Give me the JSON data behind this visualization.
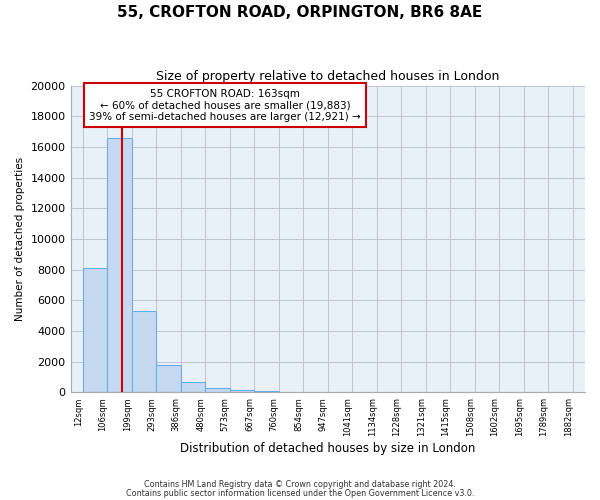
{
  "title": "55, CROFTON ROAD, ORPINGTON, BR6 8AE",
  "subtitle": "Size of property relative to detached houses in London",
  "xlabel": "Distribution of detached houses by size in London",
  "ylabel": "Number of detached properties",
  "bar_left_edges": [
    12,
    106,
    199,
    293,
    386,
    480,
    573,
    667,
    760,
    854,
    947,
    1041,
    1134,
    1228,
    1321,
    1415,
    1508,
    1602,
    1695,
    1789
  ],
  "bar_heights": [
    8100,
    16600,
    5300,
    1800,
    700,
    300,
    150,
    100,
    0,
    0,
    0,
    0,
    0,
    0,
    0,
    0,
    0,
    0,
    0,
    0
  ],
  "bin_width": 93,
  "bar_color": "#c5d9f0",
  "bar_edge_color": "#6aaee8",
  "plot_bg_color": "#e8f0f8",
  "vline_x": 163,
  "vline_color": "#cc0000",
  "annotation_title": "55 CROFTON ROAD: 163sqm",
  "annotation_line1": "← 60% of detached houses are smaller (19,883)",
  "annotation_line2": "39% of semi-detached houses are larger (12,921) →",
  "annotation_box_color": "#ffffff",
  "annotation_box_edge_color": "#cc0000",
  "tick_labels": [
    "12sqm",
    "106sqm",
    "199sqm",
    "293sqm",
    "386sqm",
    "480sqm",
    "573sqm",
    "667sqm",
    "760sqm",
    "854sqm",
    "947sqm",
    "1041sqm",
    "1134sqm",
    "1228sqm",
    "1321sqm",
    "1415sqm",
    "1508sqm",
    "1602sqm",
    "1695sqm",
    "1789sqm",
    "1882sqm"
  ],
  "ylim": [
    0,
    20000
  ],
  "yticks": [
    0,
    2000,
    4000,
    6000,
    8000,
    10000,
    12000,
    14000,
    16000,
    18000,
    20000
  ],
  "footer_line1": "Contains HM Land Registry data © Crown copyright and database right 2024.",
  "footer_line2": "Contains public sector information licensed under the Open Government Licence v3.0.",
  "background_color": "#ffffff",
  "grid_color": "#bbbbcc"
}
